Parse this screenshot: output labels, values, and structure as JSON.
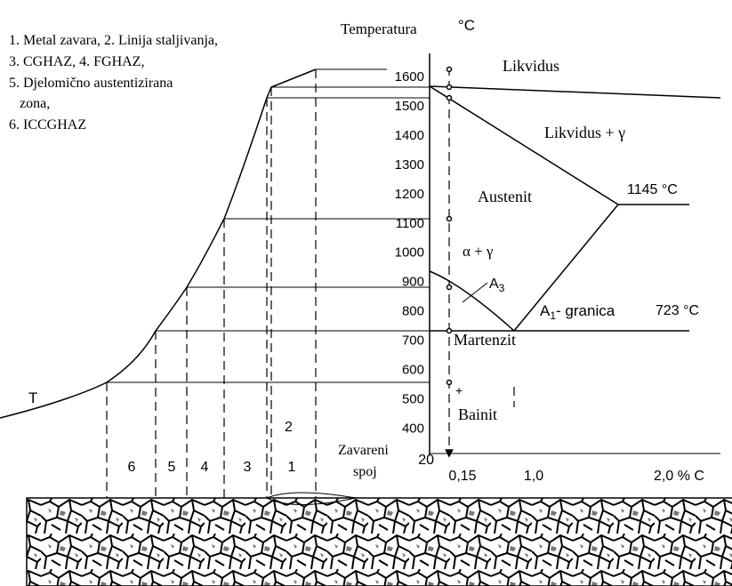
{
  "legend": [
    "1. Metal zavara, 2. Linija staljivanja,",
    "3. CGHAZ, 4. FGHAZ,",
    "5. Djelomično austentizirana",
    "zona,",
    "6. ICCGHAZ"
  ],
  "axis": {
    "title": "Temperatura",
    "unit": "°C",
    "ticks": [
      1600,
      1500,
      1400,
      1300,
      1200,
      1100,
      1000,
      900,
      800,
      700,
      600,
      500,
      400
    ],
    "bottom": "20"
  },
  "x_axis": {
    "labels": [
      "0,15",
      "1,0",
      "2,0 % C"
    ]
  },
  "phases": {
    "liquidus": "Likvidus",
    "liquidus_gamma": "Likvidus + γ",
    "eutectic": "1145 °C",
    "austenite": "Austenit",
    "alpha_gamma": "α + γ",
    "a3": {
      "text": "A",
      "sub": "3"
    },
    "a1": {
      "text": "A",
      "sub": "1",
      "rest": "- granica"
    },
    "a1_temp": "723 °C",
    "martensite": "Martenzit",
    "plus": "+",
    "bainite": "Bainit"
  },
  "curve_label": "T",
  "fusion_line": "2",
  "zones": [
    "6",
    "5",
    "4",
    "3",
    "1"
  ],
  "weld": [
    "Zavareni",
    "spoj"
  ]
}
